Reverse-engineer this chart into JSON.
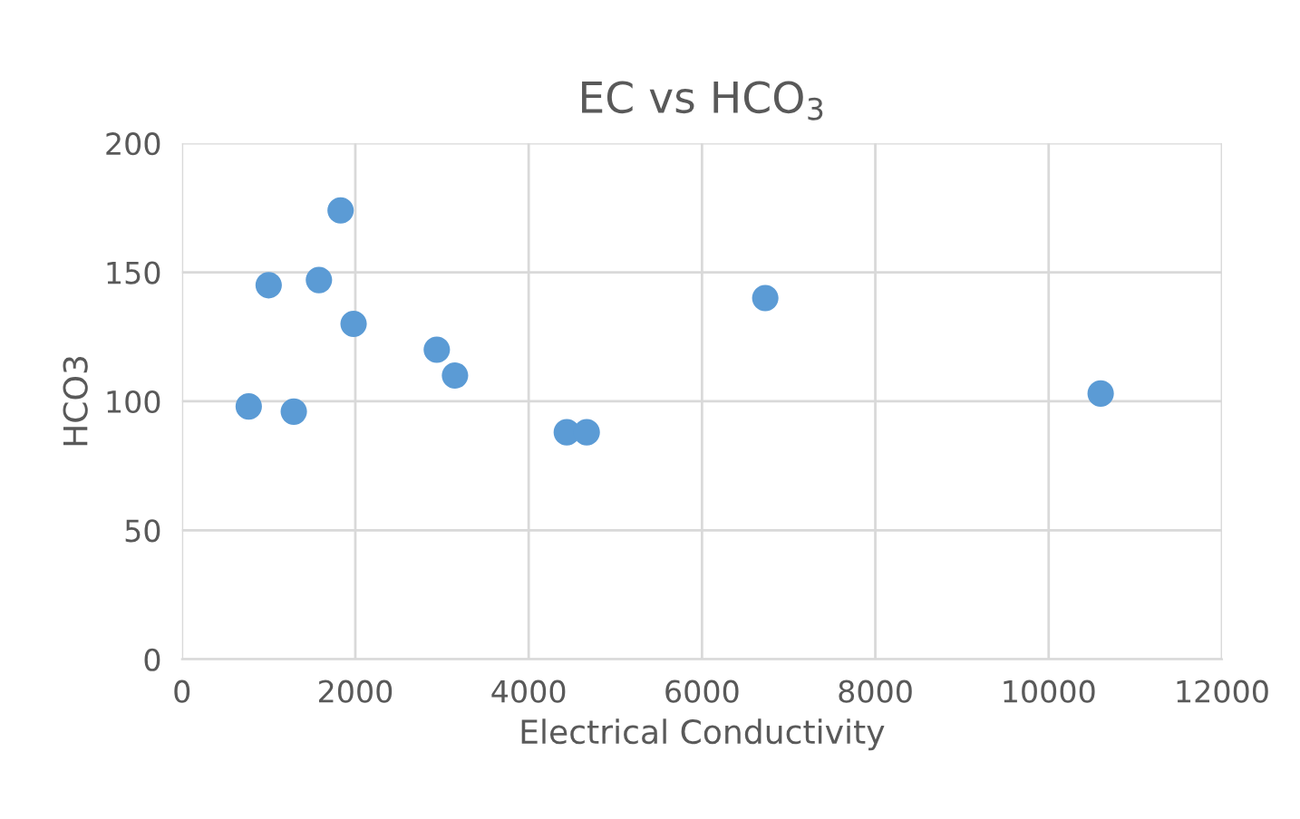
{
  "chart_data": {
    "type": "scatter",
    "title": "EC vs HCO$_{3}$",
    "xlabel": "Electrical Conductivity",
    "ylabel": "HCO3",
    "x": [
      770,
      1000,
      1290,
      1580,
      1830,
      1980,
      2940,
      3150,
      4440,
      4670,
      6730,
      10600
    ],
    "series": [
      {
        "color": "#5b9bd5",
        "values": [
          98,
          145,
          96,
          147,
          174,
          130,
          120,
          110,
          88,
          88,
          140,
          103
        ]
      }
    ],
    "xlim": [
      0,
      12000
    ],
    "xticks": [
      0,
      2000,
      4000,
      6000,
      8000,
      10000,
      12000
    ],
    "ylim": [
      0,
      200
    ],
    "yticks": [
      0,
      50,
      100,
      150,
      200
    ],
    "grid": true,
    "marker": "circle"
  }
}
